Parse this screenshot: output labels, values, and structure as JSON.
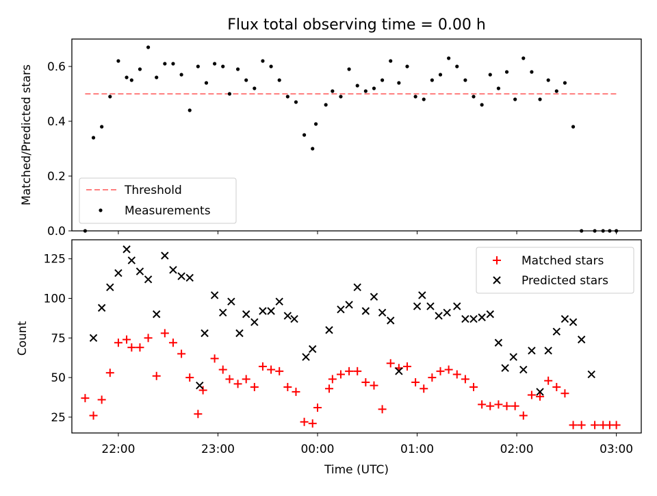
{
  "figure": {
    "title": "Flux total observing time = 0.00 h"
  },
  "chart_data": [
    {
      "type": "scatter",
      "panel": "top",
      "title": "Flux total observing time = 0.00 h",
      "xlabel": "",
      "ylabel": "Matched/Predicted stars",
      "xlim": [
        "21:32",
        "03:15"
      ],
      "ylim": [
        0,
        0.7
      ],
      "yticks": [
        "0.0",
        "0.2",
        "0.4",
        "0.6"
      ],
      "x_tick_values": [
        "22:00",
        "23:00",
        "00:00",
        "01:00",
        "02:00",
        "03:00"
      ],
      "legend": {
        "placement": "lower-left"
      },
      "threshold": {
        "name": "Threshold",
        "value": 0.5,
        "x_start": "21:40",
        "x_end": "03:00",
        "color": "#ff7f7f",
        "style": "dashed"
      },
      "series": [
        {
          "name": "Measurements",
          "color": "#000000",
          "marker": "dot",
          "x": [
            "21:40",
            "21:45",
            "21:50",
            "21:55",
            "22:00",
            "22:05",
            "22:08",
            "22:13",
            "22:18",
            "22:23",
            "22:28",
            "22:33",
            "22:38",
            "22:43",
            "22:48",
            "22:53",
            "22:58",
            "23:03",
            "23:07",
            "23:12",
            "23:17",
            "23:22",
            "23:27",
            "23:32",
            "23:37",
            "23:42",
            "23:47",
            "23:52",
            "23:57",
            "23:59",
            "24:05",
            "24:09",
            "24:14",
            "24:19",
            "24:24",
            "24:29",
            "24:34",
            "24:39",
            "24:44",
            "24:49",
            "24:54",
            "24:59",
            "25:04",
            "25:09",
            "25:14",
            "25:19",
            "25:24",
            "25:29",
            "25:34",
            "25:39",
            "25:44",
            "25:49",
            "25:54",
            "25:59",
            "26:04",
            "26:09",
            "26:14",
            "26:19",
            "26:24",
            "26:29",
            "26:34",
            "26:39",
            "26:47",
            "26:52",
            "26:56",
            "27:00"
          ],
          "y": [
            0.0,
            0.34,
            0.38,
            0.49,
            0.62,
            0.56,
            0.55,
            0.59,
            0.67,
            0.56,
            0.61,
            0.61,
            0.57,
            0.44,
            0.6,
            0.54,
            0.61,
            0.6,
            0.5,
            0.59,
            0.55,
            0.52,
            0.62,
            0.6,
            0.55,
            0.49,
            0.47,
            0.35,
            0.3,
            0.39,
            0.46,
            0.51,
            0.49,
            0.59,
            0.53,
            0.51,
            0.52,
            0.55,
            0.62,
            0.54,
            0.6,
            0.49,
            0.48,
            0.55,
            0.57,
            0.63,
            0.6,
            0.55,
            0.49,
            0.46,
            0.57,
            0.52,
            0.58,
            0.48,
            0.63,
            0.58,
            0.48,
            0.55,
            0.51,
            0.54,
            0.38,
            0.0,
            0.0,
            0.0,
            0.0,
            0.0
          ]
        }
      ]
    },
    {
      "type": "scatter",
      "panel": "bottom",
      "xlabel": "Time (UTC)",
      "ylabel": "Count",
      "xlim": [
        "21:32",
        "03:15"
      ],
      "ylim": [
        15,
        137
      ],
      "yticks": [
        "25",
        "50",
        "75",
        "100",
        "125"
      ],
      "xticks": [
        "22:00",
        "23:00",
        "00:00",
        "01:00",
        "02:00",
        "03:00"
      ],
      "x_tick_values": [
        "22:00",
        "23:00",
        "00:00",
        "01:00",
        "02:00",
        "03:00"
      ],
      "legend": {
        "placement": "top-right"
      },
      "series": [
        {
          "name": "Matched stars",
          "color": "#ff0000",
          "marker": "plus",
          "x": [
            "21:40",
            "21:45",
            "21:50",
            "21:55",
            "22:00",
            "22:05",
            "22:08",
            "22:13",
            "22:18",
            "22:23",
            "22:28",
            "22:33",
            "22:38",
            "22:43",
            "22:48",
            "22:51",
            "22:58",
            "23:03",
            "23:07",
            "23:12",
            "23:17",
            "23:22",
            "23:27",
            "23:32",
            "23:37",
            "23:42",
            "23:47",
            "23:52",
            "23:57",
            "24:00",
            "24:07",
            "24:09",
            "24:14",
            "24:19",
            "24:24",
            "24:29",
            "24:34",
            "24:39",
            "24:44",
            "24:49",
            "24:54",
            "24:59",
            "25:04",
            "25:09",
            "25:14",
            "25:19",
            "25:24",
            "25:29",
            "25:34",
            "25:39",
            "25:44",
            "25:49",
            "25:54",
            "25:59",
            "26:04",
            "26:09",
            "26:14",
            "26:19",
            "26:24",
            "26:29",
            "26:34",
            "26:39",
            "26:47",
            "26:52",
            "26:56",
            "27:00"
          ],
          "y": [
            37,
            26,
            36,
            53,
            72,
            74,
            69,
            69,
            75,
            51,
            78,
            72,
            65,
            50,
            27,
            42,
            62,
            55,
            49,
            46,
            49,
            44,
            57,
            55,
            54,
            44,
            41,
            22,
            21,
            31,
            43,
            49,
            52,
            54,
            54,
            47,
            45,
            30,
            59,
            56,
            57,
            47,
            43,
            50,
            54,
            55,
            52,
            49,
            44,
            33,
            32,
            33,
            32,
            32,
            26,
            39,
            38,
            48,
            44,
            40,
            20,
            20,
            20,
            20,
            20,
            20
          ]
        },
        {
          "name": "Predicted stars",
          "color": "#000000",
          "marker": "x",
          "x": [
            "21:45",
            "21:50",
            "21:55",
            "22:00",
            "22:05",
            "22:08",
            "22:13",
            "22:18",
            "22:23",
            "22:28",
            "22:33",
            "22:38",
            "22:43",
            "22:49",
            "22:52",
            "22:58",
            "23:03",
            "23:08",
            "23:13",
            "23:17",
            "23:22",
            "23:27",
            "23:32",
            "23:37",
            "23:42",
            "23:46",
            "23:53",
            "23:57",
            "24:07",
            "24:14",
            "24:19",
            "24:24",
            "24:29",
            "24:34",
            "24:39",
            "24:44",
            "24:49",
            "25:00",
            "25:03",
            "25:08",
            "25:13",
            "25:18",
            "25:24",
            "25:29",
            "25:34",
            "25:39",
            "25:44",
            "25:49",
            "25:53",
            "25:58",
            "26:04",
            "26:09",
            "26:14",
            "26:19",
            "26:24",
            "26:29",
            "26:34",
            "26:39",
            "26:45"
          ],
          "y": [
            75,
            94,
            107,
            116,
            131,
            124,
            117,
            112,
            90,
            127,
            118,
            114,
            113,
            45,
            78,
            102,
            91,
            98,
            78,
            90,
            85,
            92,
            92,
            98,
            89,
            87,
            63,
            68,
            80,
            93,
            96,
            107,
            92,
            101,
            91,
            86,
            54,
            95,
            102,
            95,
            89,
            91,
            95,
            87,
            87,
            88,
            90,
            72,
            56,
            63,
            55,
            67,
            41,
            67,
            79,
            87,
            85,
            74,
            52
          ]
        }
      ]
    }
  ]
}
